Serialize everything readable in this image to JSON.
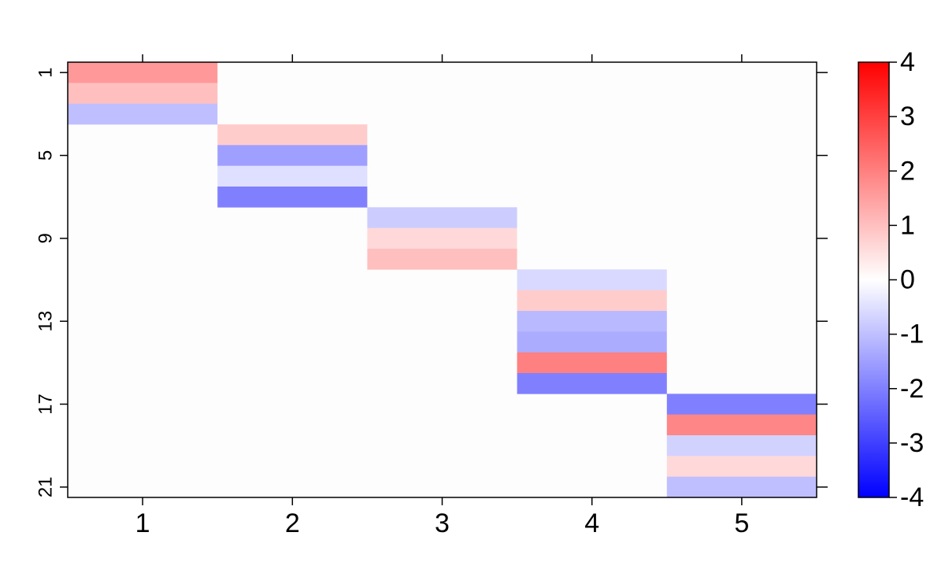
{
  "chart_data": {
    "type": "heatmap",
    "title": "",
    "xlabel": "",
    "ylabel": "",
    "x_categories": [
      "1",
      "2",
      "3",
      "4",
      "5"
    ],
    "y_rows": 21,
    "y_ticks": [
      "1",
      "5",
      "9",
      "13",
      "17",
      "21"
    ],
    "background_value": 0,
    "cells": [
      {
        "x": 1,
        "y": 1,
        "value": 1.6
      },
      {
        "x": 1,
        "y": 2,
        "value": 1.0
      },
      {
        "x": 1,
        "y": 3,
        "value": -1.0
      },
      {
        "x": 2,
        "y": 4,
        "value": 0.8
      },
      {
        "x": 2,
        "y": 5,
        "value": -1.5
      },
      {
        "x": 2,
        "y": 6,
        "value": -0.5
      },
      {
        "x": 2,
        "y": 7,
        "value": -2.0
      },
      {
        "x": 3,
        "y": 8,
        "value": -0.8
      },
      {
        "x": 3,
        "y": 9,
        "value": 0.6
      },
      {
        "x": 3,
        "y": 10,
        "value": 1.0
      },
      {
        "x": 4,
        "y": 11,
        "value": -0.6
      },
      {
        "x": 4,
        "y": 12,
        "value": 0.8
      },
      {
        "x": 4,
        "y": 13,
        "value": -1.1
      },
      {
        "x": 4,
        "y": 14,
        "value": -1.3
      },
      {
        "x": 4,
        "y": 15,
        "value": 2.0
      },
      {
        "x": 4,
        "y": 16,
        "value": -2.0
      },
      {
        "x": 5,
        "y": 17,
        "value": -2.0
      },
      {
        "x": 5,
        "y": 18,
        "value": 1.9
      },
      {
        "x": 5,
        "y": 19,
        "value": -0.7
      },
      {
        "x": 5,
        "y": 20,
        "value": 0.6
      },
      {
        "x": 5,
        "y": 21,
        "value": -1.0
      }
    ],
    "colorbar": {
      "min": -4,
      "max": 4,
      "ticks": [
        "-4",
        "-3",
        "-2",
        "-1",
        "0",
        "1",
        "2",
        "3",
        "4"
      ],
      "low_color": "#0000ff",
      "mid_color": "#ffffff",
      "high_color": "#ff0000"
    }
  }
}
